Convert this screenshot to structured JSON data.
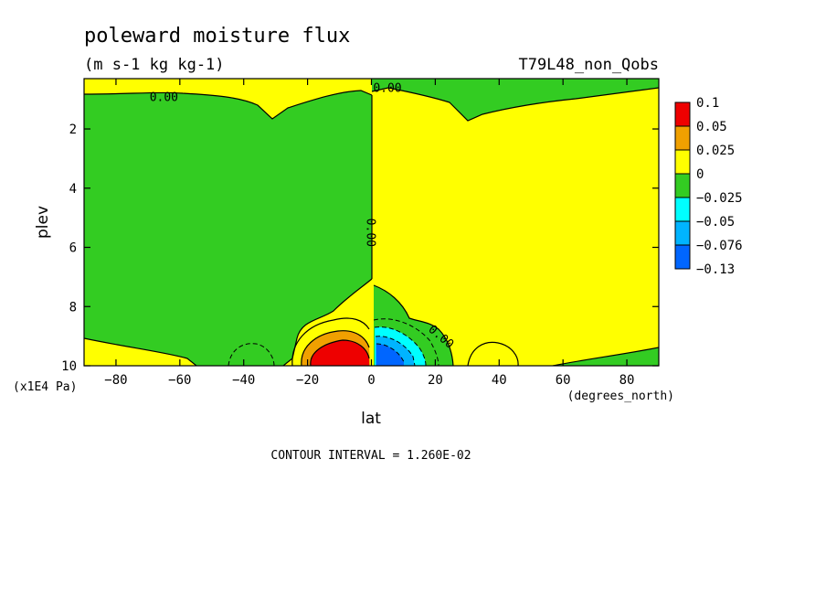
{
  "chart_data": {
    "type": "heatmap",
    "title": "poleward moisture flux",
    "subtitle": "(m s-1 kg kg-1)",
    "experiment": "T79L48_non_Qobs",
    "xlabel": "lat",
    "x_units": "(degrees_north)",
    "ylabel": "plev",
    "y_units": "(x1E4 Pa)",
    "xlim": [
      -90,
      90
    ],
    "ylim": [
      10,
      0.3
    ],
    "x_ticks": [
      -80,
      -60,
      -40,
      -20,
      0,
      20,
      40,
      60,
      80
    ],
    "y_ticks": [
      2,
      4,
      6,
      8,
      10
    ],
    "contour_interval_text": "CONTOUR INTERVAL = 1.260E-02",
    "contour_labels": [
      {
        "text": "0.00",
        "x": -65,
        "y": 0.9
      },
      {
        "text": "0.00",
        "x": 5,
        "y": 0.6
      },
      {
        "text": "0.00",
        "x": 0,
        "y": 5.5
      },
      {
        "text": "0.00",
        "x": 22,
        "y": 9.0
      }
    ],
    "legend": {
      "levels": [
        "0.1",
        "0.05",
        "0.025",
        "0",
        "-0.025",
        "-0.05",
        "-0.076",
        "-0.13"
      ],
      "colors": [
        "#ee0000",
        "#f0a000",
        "#ffff00",
        "#33cc22",
        "#00ffff",
        "#00b4ff",
        "#0066ff"
      ]
    },
    "regions": [
      {
        "value": "positive",
        "color": "#ffff00",
        "desc": "NH 0-90N and upper-level band"
      },
      {
        "value": "negative",
        "color": "#33cc22",
        "desc": "SH interior, 90S-0"
      },
      {
        "value": "max",
        "color": "#ee0000",
        "center": [
          -6,
          9.6
        ],
        "approx": 0.1
      },
      {
        "value": "min",
        "color": "#0066ff",
        "center": [
          7,
          9.6
        ],
        "approx": -0.1
      }
    ]
  }
}
